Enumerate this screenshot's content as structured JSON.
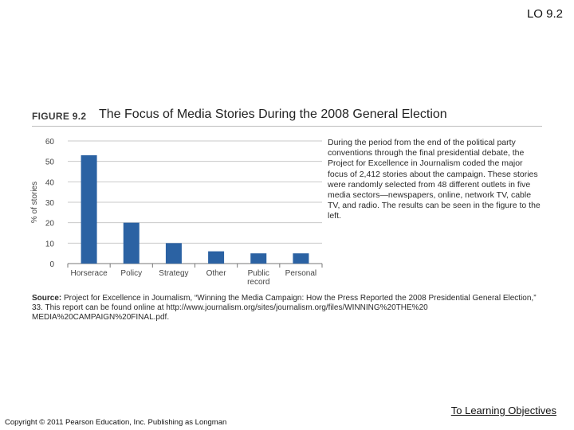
{
  "header": {
    "lo_label": "LO 9.2"
  },
  "figure": {
    "label": "FIGURE 9.2",
    "title": "The Focus of Media Stories During the 2008 General Election",
    "description": "During the period from the end of the political party conventions through the final presidential debate, the Project for Excellence in Journalism coded the major focus of 2,412 stories about the campaign. These stories were randomly selected from 48 different outlets in five media sectors—newspapers, online, network TV, cable TV, and radio. The results can be seen in the figure to the left.",
    "source_label": "Source:",
    "source_text": "Project for Excellence in Journalism, “Winning the Media Campaign: How the Press Reported the 2008 Presidential General Election,” 33. This report can be found online at http://www.journalism.org/sites/journalism.org/files/WINNING%20THE%20 MEDIA%20CAMPAIGN%20FINAL.pdf."
  },
  "chart_data": {
    "type": "bar",
    "categories": [
      "Horserace",
      "Policy",
      "Strategy",
      "Other",
      "Public record",
      "Personal"
    ],
    "category_lines": [
      [
        "Horserace"
      ],
      [
        "Policy"
      ],
      [
        "Strategy"
      ],
      [
        "Other"
      ],
      [
        "Public",
        "record"
      ],
      [
        "Personal"
      ]
    ],
    "values": [
      53,
      20,
      10,
      6,
      5,
      5
    ],
    "ylabel": "% of stories",
    "xlabel": "",
    "ylim": [
      0,
      60
    ],
    "yticks": [
      0,
      10,
      20,
      30,
      40,
      50,
      60
    ],
    "bar_color": "#2b62a3",
    "grid": true
  },
  "footer": {
    "link_label": "To Learning Objectives",
    "copyright": "Copyright © 2011 Pearson Education, Inc. Publishing as Longman"
  }
}
